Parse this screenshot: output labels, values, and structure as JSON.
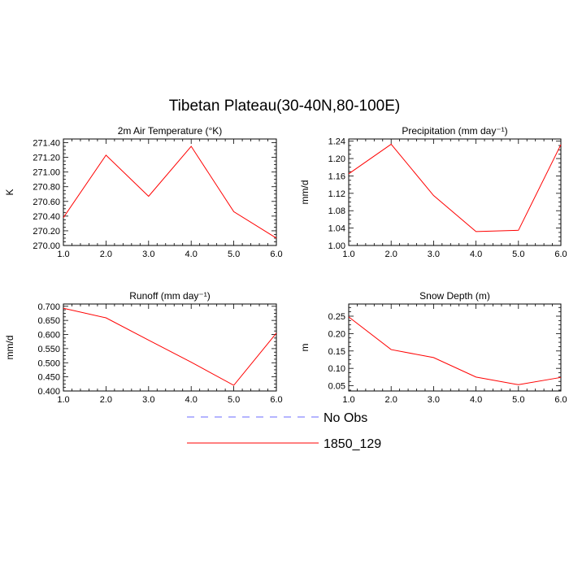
{
  "figure": {
    "title": "Tibetan Plateau(30-40N,80-100E)"
  },
  "legend": {
    "placement": "bottom-center",
    "entries": [
      {
        "label": "No Obs",
        "color": "#6b6bff",
        "dash": "dashed"
      },
      {
        "label": "1850_129",
        "color": "#ff0000",
        "dash": "solid"
      }
    ]
  },
  "chart_data": [
    {
      "type": "line",
      "title": "2m Air Temperature (°K)",
      "ylabel": "K",
      "xlim": [
        1,
        6
      ],
      "ylim": [
        270.0,
        271.45
      ],
      "xticks": [
        "1.0",
        "2.0",
        "3.0",
        "4.0",
        "5.0",
        "6.0"
      ],
      "yticks": [
        {
          "value": 270.0,
          "label": "270.00"
        },
        {
          "value": 270.2,
          "label": "270.20"
        },
        {
          "value": 270.4,
          "label": "270.40"
        },
        {
          "value": 270.6,
          "label": "270.60"
        },
        {
          "value": 270.8,
          "label": "270.80"
        },
        {
          "value": 271.0,
          "label": "271.00"
        },
        {
          "value": 271.2,
          "label": "271.20"
        },
        {
          "value": 271.4,
          "label": "271.40"
        }
      ],
      "series": [
        {
          "name": "1850_129",
          "color": "#ff0000",
          "x": [
            1,
            2,
            3,
            4,
            5,
            6
          ],
          "y": [
            270.38,
            271.23,
            270.67,
            271.35,
            270.46,
            270.1
          ]
        }
      ]
    },
    {
      "type": "line",
      "title": "Precipitation (mm day⁻¹)",
      "ylabel": "mm/d",
      "xlim": [
        1,
        6
      ],
      "ylim": [
        1.0,
        1.245
      ],
      "xticks": [
        "1.0",
        "2.0",
        "3.0",
        "4.0",
        "5.0",
        "6.0"
      ],
      "yticks": [
        {
          "value": 1.0,
          "label": "1.00"
        },
        {
          "value": 1.04,
          "label": "1.04"
        },
        {
          "value": 1.08,
          "label": "1.08"
        },
        {
          "value": 1.12,
          "label": "1.12"
        },
        {
          "value": 1.16,
          "label": "1.16"
        },
        {
          "value": 1.2,
          "label": "1.20"
        },
        {
          "value": 1.24,
          "label": "1.24"
        }
      ],
      "series": [
        {
          "name": "1850_129",
          "color": "#ff0000",
          "x": [
            1,
            2,
            3,
            4,
            5,
            6
          ],
          "y": [
            1.165,
            1.233,
            1.115,
            1.032,
            1.035,
            1.232
          ]
        }
      ]
    },
    {
      "type": "line",
      "title": "Runoff (mm day⁻¹)",
      "ylabel": "mm/d",
      "xlim": [
        1,
        6
      ],
      "ylim": [
        0.4,
        0.708
      ],
      "xticks": [
        "1.0",
        "2.0",
        "3.0",
        "4.0",
        "5.0",
        "6.0"
      ],
      "yticks": [
        {
          "value": 0.4,
          "label": "0.400"
        },
        {
          "value": 0.45,
          "label": "0.450"
        },
        {
          "value": 0.5,
          "label": "0.500"
        },
        {
          "value": 0.55,
          "label": "0.550"
        },
        {
          "value": 0.6,
          "label": "0.600"
        },
        {
          "value": 0.65,
          "label": "0.650"
        },
        {
          "value": 0.7,
          "label": "0.700"
        }
      ],
      "series": [
        {
          "name": "1850_129",
          "color": "#ff0000",
          "x": [
            1,
            2,
            3,
            4,
            5,
            6
          ],
          "y": [
            0.693,
            0.659,
            0.58,
            0.502,
            0.42,
            0.605
          ]
        }
      ]
    },
    {
      "type": "line",
      "title": "Snow Depth (m)",
      "ylabel": "m",
      "xlim": [
        1,
        6
      ],
      "ylim": [
        0.035,
        0.285
      ],
      "xticks": [
        "1.0",
        "2.0",
        "3.0",
        "4.0",
        "5.0",
        "6.0"
      ],
      "yticks": [
        {
          "value": 0.05,
          "label": "0.05"
        },
        {
          "value": 0.1,
          "label": "0.10"
        },
        {
          "value": 0.15,
          "label": "0.15"
        },
        {
          "value": 0.2,
          "label": "0.20"
        },
        {
          "value": 0.25,
          "label": "0.25"
        }
      ],
      "series": [
        {
          "name": "1850_129",
          "color": "#ff0000",
          "x": [
            1,
            2,
            3,
            4,
            5,
            6
          ],
          "y": [
            0.248,
            0.154,
            0.131,
            0.075,
            0.053,
            0.074
          ]
        }
      ]
    }
  ]
}
